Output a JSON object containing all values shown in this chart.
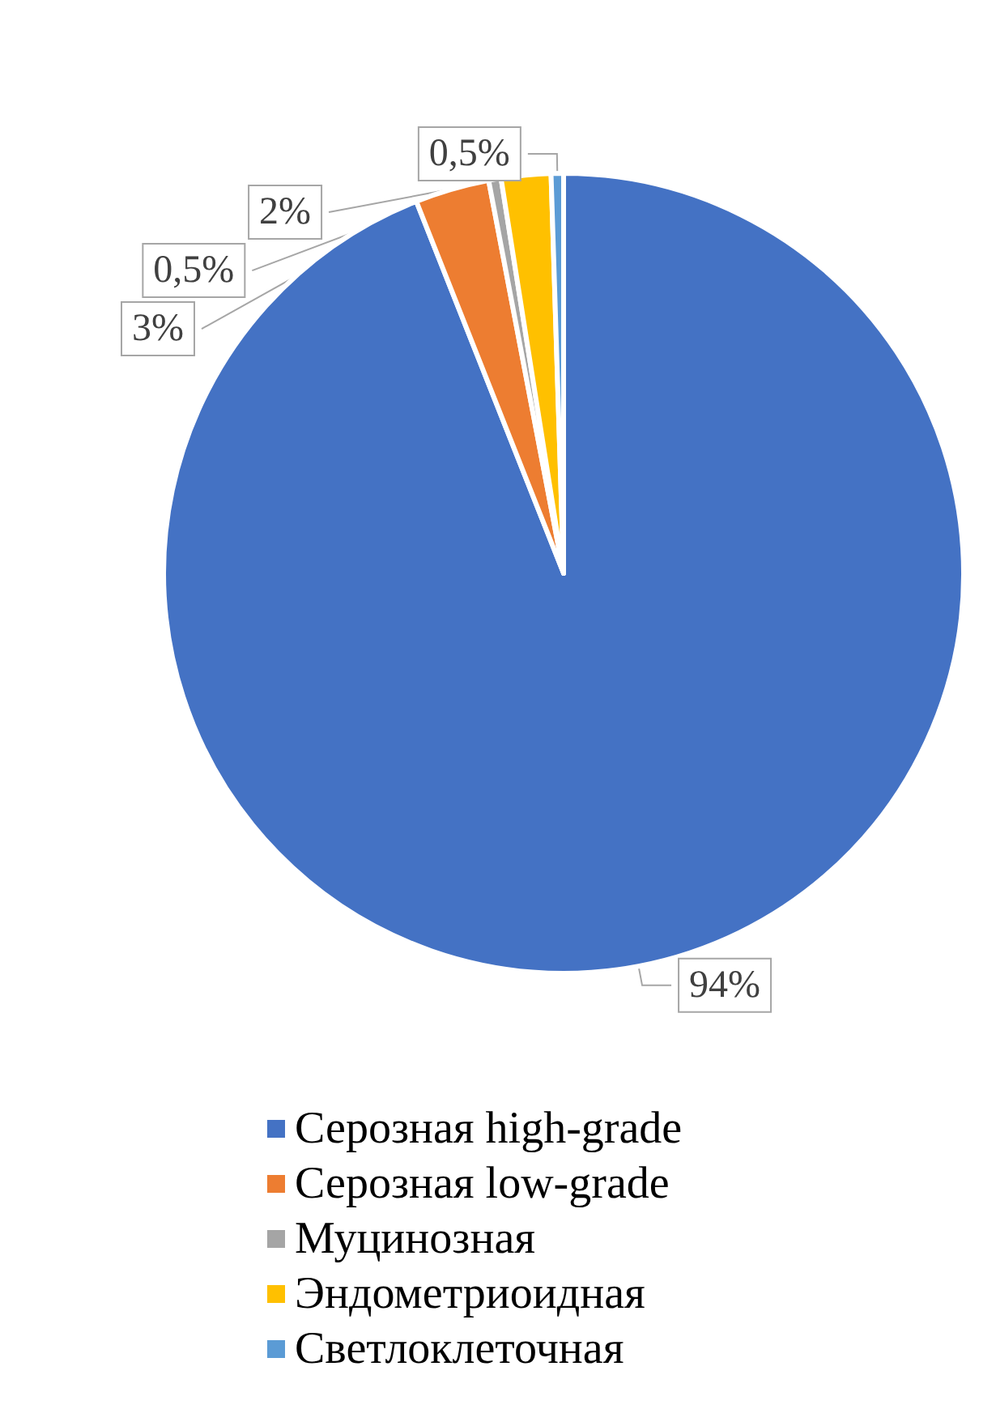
{
  "chart_data": {
    "type": "pie",
    "categories": [
      "Серозная high-grade",
      "Серозная low-grade",
      "Муцинозная",
      "Эндометриоидная",
      "Светлоклеточная"
    ],
    "values": [
      94,
      3,
      0.5,
      2,
      0.5
    ],
    "value_labels": [
      "94%",
      "3%",
      "0,5%",
      "2%",
      "0,5%"
    ],
    "colors": [
      "#4472c4",
      "#ed7d31",
      "#a5a5a5",
      "#ffc000",
      "#5b9bd5"
    ],
    "legend": "bottom"
  }
}
